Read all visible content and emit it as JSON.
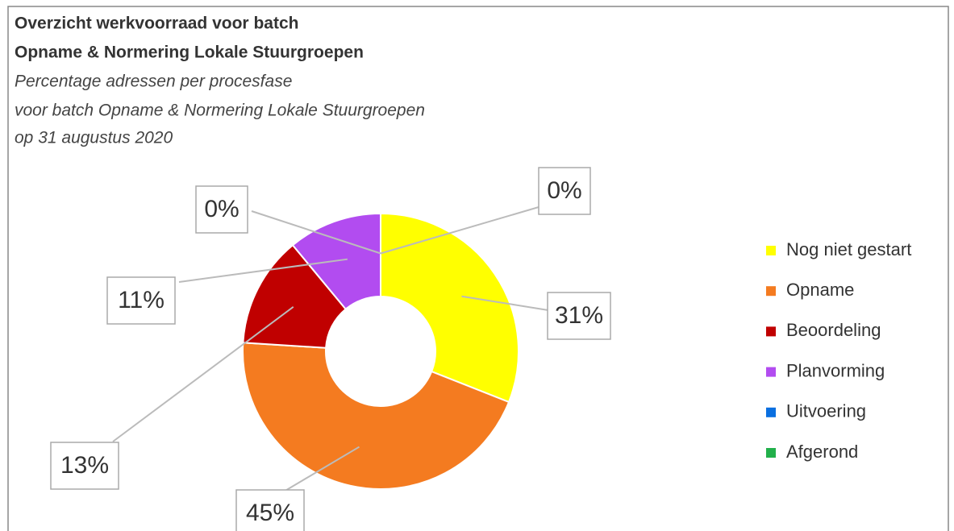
{
  "chart_data": {
    "type": "donut",
    "title": [
      "Overzicht werkvoorraad voor batch",
      "Opname & Normering Lokale Stuurgroepen"
    ],
    "subtitle": [
      "Percentage adressen per procesfase",
      "voor batch Opname & Normering Lokale Stuurgroepen",
      "op 31 augustus 2020"
    ],
    "categories": [
      "Nog niet gestart",
      "Opname",
      "Beoordeling",
      "Planvorming",
      "Uitvoering",
      "Afgerond"
    ],
    "values": [
      31,
      45,
      13,
      11,
      0,
      0
    ],
    "value_labels": [
      "31%",
      "45%",
      "13%",
      "11%",
      "0%",
      "0%"
    ],
    "colors": [
      "#ffff00",
      "#f47b20",
      "#c00000",
      "#b24cf0",
      "#0a6fe0",
      "#22b04b"
    ],
    "legend": "right"
  }
}
